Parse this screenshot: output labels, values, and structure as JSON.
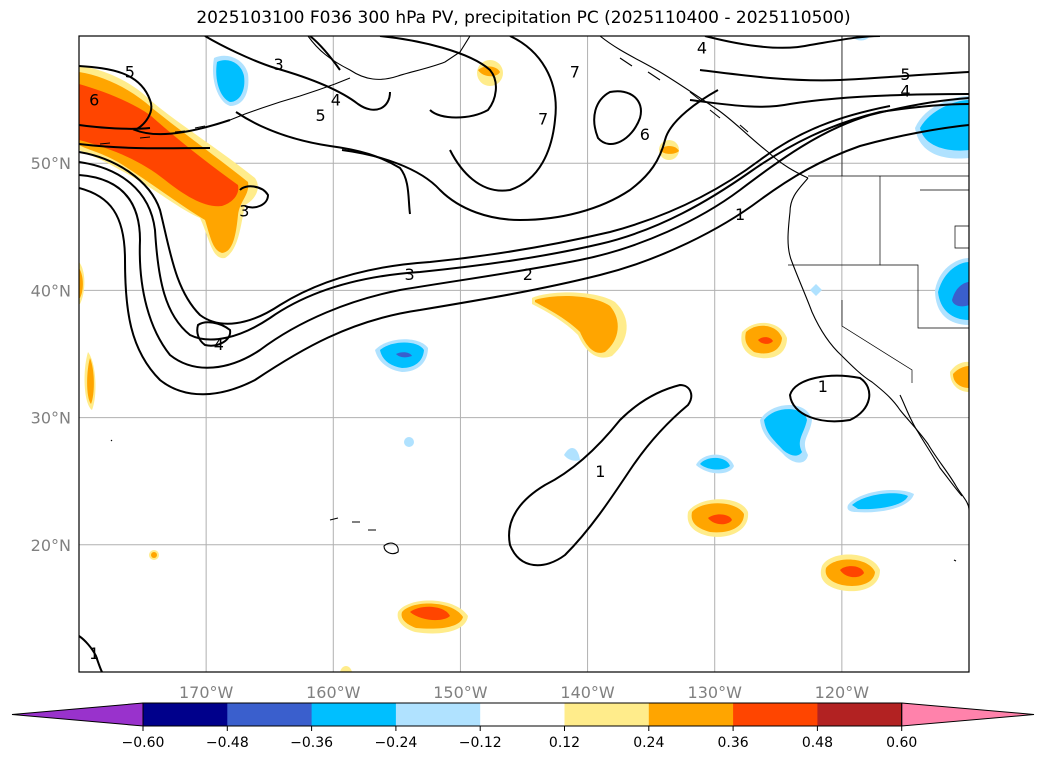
{
  "chart_data": {
    "type": "contour",
    "title": "2025103100 F036 300 hPa PV, precipitation PC (2025110400 - 2025110500)",
    "extent": {
      "lon_min": -180,
      "lon_max": -110,
      "lat_min": 10,
      "lat_max": 60
    },
    "lon_ticks": [
      {
        "value": -170,
        "label": "170°W"
      },
      {
        "value": -160,
        "label": "160°W"
      },
      {
        "value": -150,
        "label": "150°W"
      },
      {
        "value": -140,
        "label": "140°W"
      },
      {
        "value": -130,
        "label": "130°W"
      },
      {
        "value": -120,
        "label": "120°W"
      }
    ],
    "lat_ticks": [
      {
        "value": 50,
        "label": "50°N"
      },
      {
        "value": 40,
        "label": "40°N"
      },
      {
        "value": 30,
        "label": "30°N"
      },
      {
        "value": 20,
        "label": "20°N"
      }
    ],
    "grid": true,
    "pv_contour_labels": [
      {
        "text": "5",
        "lon": -176.0,
        "lat": 57.2
      },
      {
        "text": "6",
        "lon": -178.8,
        "lat": 55.0
      },
      {
        "text": "3",
        "lon": -164.3,
        "lat": 57.8
      },
      {
        "text": "4",
        "lon": -159.8,
        "lat": 55.0
      },
      {
        "text": "5",
        "lon": -161.0,
        "lat": 53.8
      },
      {
        "text": "7",
        "lon": -141.0,
        "lat": 57.2
      },
      {
        "text": "7",
        "lon": -143.5,
        "lat": 53.5
      },
      {
        "text": "6",
        "lon": -135.5,
        "lat": 52.3
      },
      {
        "text": "4",
        "lon": -131.0,
        "lat": 59.1
      },
      {
        "text": "5",
        "lon": -115.0,
        "lat": 57.0
      },
      {
        "text": "4",
        "lon": -115.0,
        "lat": 55.7
      },
      {
        "text": "3",
        "lon": -167.0,
        "lat": 46.3
      },
      {
        "text": "3",
        "lon": -154.0,
        "lat": 41.3
      },
      {
        "text": "2",
        "lon": -144.7,
        "lat": 41.3
      },
      {
        "text": "1",
        "lon": -128.0,
        "lat": 46.0
      },
      {
        "text": "4",
        "lon": -169.0,
        "lat": 35.8
      },
      {
        "text": "1",
        "lon": -139.0,
        "lat": 25.8
      },
      {
        "text": "1",
        "lon": -121.5,
        "lat": 32.5
      },
      {
        "text": "1",
        "lon": -178.8,
        "lat": 11.5
      }
    ],
    "colorbar": {
      "colors": [
        "#9932cc",
        "#00008b",
        "#3a5fcd",
        "#00bfff",
        "#b0e2ff",
        "#ffffff",
        "#ffec8b",
        "#ffa500",
        "#ff4500",
        "#b22222",
        "#ff82ab"
      ],
      "levels": [
        -0.6,
        -0.48,
        -0.36,
        -0.24,
        -0.12,
        0.12,
        0.24,
        0.36,
        0.48,
        0.6
      ],
      "tick_labels": [
        "−0.60",
        "−0.48",
        "−0.36",
        "−0.24",
        "−0.12",
        "0.12",
        "0.24",
        "0.36",
        "0.48",
        "0.60"
      ],
      "extend": "both"
    }
  }
}
